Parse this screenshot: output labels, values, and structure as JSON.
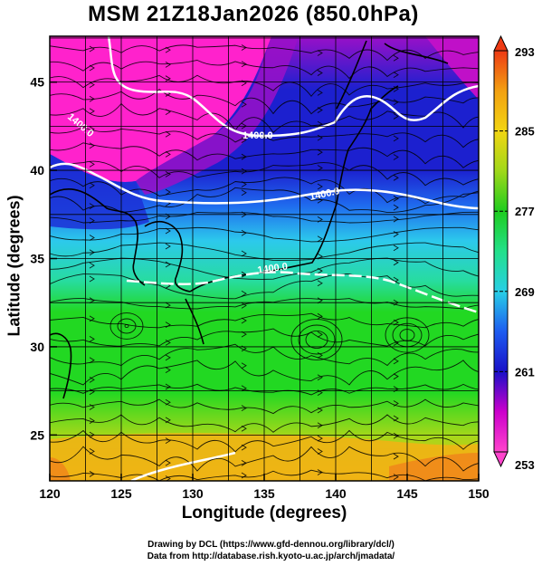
{
  "title": "MSM 21Z18Jan2026 (850.0hPa)",
  "xaxis": {
    "label": "Longitude (degrees)",
    "range": [
      120,
      150
    ],
    "ticks": [
      120,
      125,
      130,
      135,
      140,
      145,
      150
    ],
    "tick_labels": [
      "120",
      "125",
      "130",
      "135",
      "140",
      "145",
      "150"
    ]
  },
  "yaxis": {
    "label": "Latitude  (degrees)",
    "range": [
      22.4,
      47.6
    ],
    "ticks": [
      25,
      30,
      35,
      40,
      45
    ],
    "tick_labels": [
      "25",
      "30",
      "35",
      "40",
      "45"
    ]
  },
  "colorbar": {
    "range": [
      253,
      293
    ],
    "tick_labels": [
      "293",
      "285",
      "277",
      "269",
      "261",
      "253"
    ],
    "colors": [
      "#ff44cc",
      "#cc00cc",
      "#1a10c8",
      "#1d5cf0",
      "#28cfe6",
      "#22e08a",
      "#1ecc1e",
      "#a0d81a",
      "#f2d512",
      "#f2a012",
      "#ee3a14"
    ]
  },
  "contours": {
    "labels": [
      "1400.0",
      "1400.0",
      "1400.0",
      "1400.0"
    ],
    "color": "#ffffff"
  },
  "field_colors": {
    "magenta": "#ff22cc",
    "purple": "#9a10c8",
    "blue": "#1c20cf",
    "mid_blue": "#1f6aee",
    "cyan": "#2cc9ec",
    "teal": "#27dca0",
    "green": "#22d822",
    "yellow_green": "#a6d81a",
    "orange": "#f0b414"
  },
  "credits": {
    "line1": "Drawing by DCL (https://www.gfd-dennou.org/library/dcl/)",
    "line2": "Data from http://database.rish.kyoto-u.ac.jp/arch/jmadata/"
  }
}
